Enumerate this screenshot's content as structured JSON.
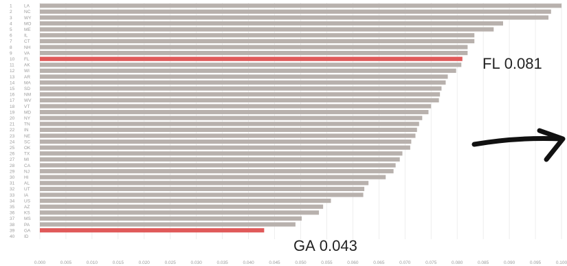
{
  "chart_data": {
    "type": "bar",
    "orientation": "horizontal",
    "categories": [
      "LA",
      "NC",
      "WY",
      "MO",
      "ME",
      "IL",
      "CT",
      "NH",
      "VA",
      "FL",
      "AK",
      "WI",
      "AR",
      "MA",
      "SD",
      "NM",
      "WV",
      "VT",
      "MD",
      "NY",
      "TN",
      "IN",
      "NE",
      "SC",
      "OK",
      "TX",
      "MI",
      "CA",
      "NJ",
      "HI",
      "AL",
      "UT",
      "IA",
      "US",
      "AZ",
      "KS",
      "MS",
      "PA",
      "GA",
      "ID"
    ],
    "ranks": [
      "1",
      "2",
      "3",
      "4",
      "5",
      "6",
      "7",
      "8",
      "9",
      "10",
      "11",
      "12",
      "13",
      "14",
      "15",
      "16",
      "17",
      "18",
      "19",
      "20",
      "21",
      "22",
      "23",
      "24",
      "25",
      "26",
      "27",
      "28",
      "29",
      "30",
      "31",
      "32",
      "33",
      "34",
      "35",
      "36",
      "37",
      "38",
      "39",
      "40"
    ],
    "values": [
      0.1,
      0.098,
      0.0975,
      0.0888,
      0.087,
      0.0833,
      0.0833,
      0.082,
      0.082,
      0.081,
      0.0808,
      0.0798,
      0.0782,
      0.0778,
      0.077,
      0.0767,
      0.0765,
      0.075,
      0.0745,
      0.0733,
      0.0727,
      0.0723,
      0.072,
      0.0712,
      0.071,
      0.0695,
      0.069,
      0.0682,
      0.0678,
      0.0663,
      0.063,
      0.0622,
      0.062,
      0.0558,
      0.0543,
      0.0535,
      0.0502,
      0.049,
      0.043,
      0.0
    ],
    "highlighted": [
      "FL",
      "GA"
    ],
    "x_ticks": [
      "0.000",
      "0.005",
      "0.010",
      "0.015",
      "0.020",
      "0.025",
      "0.030",
      "0.035",
      "0.040",
      "0.045",
      "0.050",
      "0.055",
      "0.060",
      "0.065",
      "0.070",
      "0.075",
      "0.080",
      "0.085",
      "0.090",
      "0.095",
      "0.100"
    ],
    "xlim": [
      0,
      0.1
    ],
    "grid": true,
    "colors": {
      "bar": "#b8b1ad",
      "highlight": "#e05a5a",
      "grid": "#e6e6e6"
    }
  },
  "annotations": [
    {
      "label": "FL",
      "value": "0.081"
    },
    {
      "label": "GA",
      "value": "0.043"
    }
  ],
  "arrow": {
    "icon": "arrow-right-icon",
    "color": "#111111"
  }
}
